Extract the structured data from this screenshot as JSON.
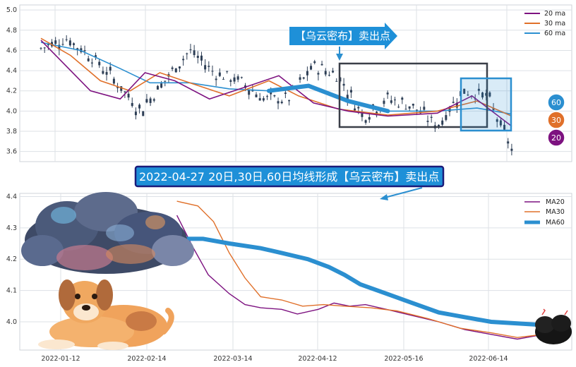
{
  "colors": {
    "ma20": "#7d1280",
    "ma30": "#e0702a",
    "ma60": "#2b8fd0",
    "candle": "#2d3e55",
    "grid": "#dde1e6",
    "annot_bg": "#1e90d8",
    "annot_border": "#1b1b7a",
    "dark_box": "#3a3f48"
  },
  "icons": {
    "cloud": "storm-cloud-illustration",
    "dog": "dog-illustration",
    "small_cloud": "dark-thundercloud-icon"
  },
  "chart_data": [
    {
      "type": "candlestick",
      "ylim": [
        3.5,
        5.05
      ],
      "yticks": [
        "5.0",
        "4.8",
        "4.6",
        "4.4",
        "4.2",
        "4.0",
        "3.8",
        "3.6"
      ],
      "ytick_values": [
        5.0,
        4.8,
        4.6,
        4.4,
        4.2,
        4.0,
        3.8,
        3.6
      ],
      "grid": true,
      "legend_position": "top-right",
      "series_names": [
        "20 ma",
        "30 ma",
        "60 ma"
      ],
      "candles_shown": "daily candles, approx. 2021-12-29 to 2022-07-07",
      "close_approx": [
        {
          "date": "2021-12-29",
          "close": 4.62
        },
        {
          "date": "2022-01-06",
          "close": 4.72
        },
        {
          "date": "2022-01-14",
          "close": 4.55
        },
        {
          "date": "2022-01-25",
          "close": 4.3
        },
        {
          "date": "2022-02-07",
          "close": 4.0
        },
        {
          "date": "2022-02-15",
          "close": 4.3
        },
        {
          "date": "2022-02-23",
          "close": 4.6
        },
        {
          "date": "2022-03-03",
          "close": 4.38
        },
        {
          "date": "2022-03-11",
          "close": 4.3
        },
        {
          "date": "2022-03-22",
          "close": 4.12
        },
        {
          "date": "2022-03-31",
          "close": 4.12
        },
        {
          "date": "2022-04-08",
          "close": 4.45
        },
        {
          "date": "2022-04-21",
          "close": 4.35
        },
        {
          "date": "2022-04-29",
          "close": 3.95
        },
        {
          "date": "2022-05-12",
          "close": 4.12
        },
        {
          "date": "2022-05-23",
          "close": 4.05
        },
        {
          "date": "2022-06-01",
          "close": 3.85
        },
        {
          "date": "2022-06-10",
          "close": 4.2
        },
        {
          "date": "2022-06-20",
          "close": 4.15
        },
        {
          "date": "2022-07-07",
          "close": 3.62
        }
      ],
      "annotations": {
        "callout": "【乌云密布】卖出点",
        "badges": [
          "60",
          "30",
          "20"
        ]
      },
      "ma_values_approx": {
        "20 ma": [
          [
            0,
            4.7
          ],
          [
            0.05,
            4.45
          ],
          [
            0.1,
            4.2
          ],
          [
            0.16,
            4.12
          ],
          [
            0.21,
            4.38
          ],
          [
            0.27,
            4.3
          ],
          [
            0.34,
            4.12
          ],
          [
            0.42,
            4.25
          ],
          [
            0.48,
            4.35
          ],
          [
            0.55,
            4.08
          ],
          [
            0.62,
            4.0
          ],
          [
            0.7,
            3.95
          ],
          [
            0.8,
            3.98
          ],
          [
            0.87,
            4.15
          ],
          [
            0.95,
            3.85
          ]
        ],
        "30 ma": [
          [
            0,
            4.72
          ],
          [
            0.06,
            4.55
          ],
          [
            0.12,
            4.3
          ],
          [
            0.18,
            4.2
          ],
          [
            0.24,
            4.38
          ],
          [
            0.3,
            4.28
          ],
          [
            0.38,
            4.15
          ],
          [
            0.46,
            4.3
          ],
          [
            0.52,
            4.15
          ],
          [
            0.6,
            4.02
          ],
          [
            0.7,
            3.96
          ],
          [
            0.8,
            4.0
          ],
          [
            0.88,
            4.1
          ],
          [
            0.95,
            3.95
          ]
        ],
        "60 ma": [
          [
            0,
            4.68
          ],
          [
            0.08,
            4.6
          ],
          [
            0.16,
            4.42
          ],
          [
            0.22,
            4.28
          ],
          [
            0.3,
            4.28
          ],
          [
            0.38,
            4.22
          ],
          [
            0.46,
            4.2
          ],
          [
            0.54,
            4.25
          ],
          [
            0.62,
            4.1
          ],
          [
            0.7,
            4.0
          ],
          [
            0.8,
            4.0
          ],
          [
            0.88,
            4.03
          ],
          [
            0.95,
            3.97
          ]
        ]
      }
    },
    {
      "type": "line",
      "ylim": [
        3.91,
        4.41
      ],
      "yticks": [
        "4.4",
        "4.3",
        "4.2",
        "4.1",
        "4.0"
      ],
      "ytick_values": [
        4.4,
        4.3,
        4.2,
        4.1,
        4.0
      ],
      "xticks": [
        "2022-01-12",
        "2022-02-14",
        "2022-03-14",
        "2022-04-12",
        "2022-05-16",
        "2022-06-14"
      ],
      "grid": true,
      "legend_position": "top-right",
      "series": [
        {
          "name": "MA20",
          "values": [
            [
              0.3,
              4.34
            ],
            [
              0.33,
              4.24
            ],
            [
              0.36,
              4.15
            ],
            [
              0.4,
              4.09
            ],
            [
              0.43,
              4.055
            ],
            [
              0.46,
              4.045
            ],
            [
              0.5,
              4.04
            ],
            [
              0.53,
              4.025
            ],
            [
              0.57,
              4.04
            ],
            [
              0.6,
              4.06
            ],
            [
              0.63,
              4.05
            ],
            [
              0.66,
              4.055
            ],
            [
              0.7,
              4.04
            ],
            [
              0.75,
              4.02
            ],
            [
              0.8,
              4.0
            ],
            [
              0.85,
              3.975
            ],
            [
              0.9,
              3.96
            ],
            [
              0.95,
              3.945
            ],
            [
              1.0,
              3.96
            ]
          ]
        },
        {
          "name": "MA30",
          "values": [
            [
              0.3,
              4.385
            ],
            [
              0.34,
              4.37
            ],
            [
              0.37,
              4.32
            ],
            [
              0.4,
              4.22
            ],
            [
              0.43,
              4.14
            ],
            [
              0.46,
              4.08
            ],
            [
              0.5,
              4.07
            ],
            [
              0.54,
              4.05
            ],
            [
              0.58,
              4.055
            ],
            [
              0.62,
              4.05
            ],
            [
              0.67,
              4.045
            ],
            [
              0.72,
              4.035
            ],
            [
              0.78,
              4.01
            ],
            [
              0.84,
              3.98
            ],
            [
              0.9,
              3.965
            ],
            [
              0.95,
              3.95
            ],
            [
              1.0,
              3.96
            ]
          ]
        },
        {
          "name": "MA60",
          "values": [
            [
              0.3,
              4.265
            ],
            [
              0.35,
              4.265
            ],
            [
              0.4,
              4.25
            ],
            [
              0.46,
              4.235
            ],
            [
              0.5,
              4.22
            ],
            [
              0.55,
              4.2
            ],
            [
              0.59,
              4.175
            ],
            [
              0.62,
              4.15
            ],
            [
              0.65,
              4.12
            ],
            [
              0.7,
              4.09
            ],
            [
              0.75,
              4.06
            ],
            [
              0.8,
              4.03
            ],
            [
              0.85,
              4.015
            ],
            [
              0.9,
              4.0
            ],
            [
              0.95,
              3.995
            ],
            [
              1.0,
              3.99
            ]
          ]
        }
      ],
      "annotation": "2022-04-27 20日,30日,60日均线形成【乌云密布】卖出点"
    }
  ]
}
